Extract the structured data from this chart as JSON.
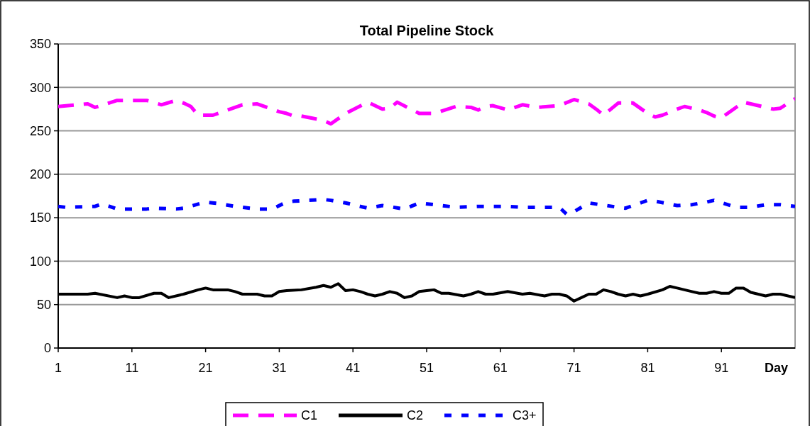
{
  "chart_data": {
    "type": "line",
    "title": "Total Pipeline Stock",
    "xlabel": "Day",
    "xlim": [
      1,
      101
    ],
    "xticks": [
      1,
      11,
      21,
      31,
      41,
      51,
      61,
      71,
      81,
      91
    ],
    "ylim": [
      0,
      350
    ],
    "yticks": [
      0,
      50,
      100,
      150,
      200,
      250,
      300,
      350
    ],
    "grid": "y",
    "legend": "bottom",
    "series": [
      {
        "name": "C1",
        "color": "#ff00ff",
        "line_style": "dashed",
        "x": [
          1,
          5,
          6,
          9,
          13,
          15,
          17,
          18,
          19,
          20,
          22,
          26,
          28,
          31,
          32,
          33,
          34,
          37,
          38,
          40,
          43,
          45,
          46,
          47,
          50,
          52,
          55,
          57,
          58,
          59,
          60,
          62,
          64,
          66,
          69,
          71,
          73,
          74,
          75,
          77,
          79,
          81,
          82,
          83,
          85,
          86,
          88,
          89,
          90,
          91,
          94,
          97,
          98,
          99,
          101
        ],
        "values": [
          278,
          281,
          277,
          285,
          285,
          280,
          285,
          282,
          278,
          268,
          268,
          280,
          281,
          272,
          270,
          267,
          267,
          262,
          258,
          270,
          283,
          275,
          276,
          283,
          270,
          270,
          278,
          277,
          274,
          278,
          279,
          274,
          280,
          277,
          279,
          286,
          281,
          275,
          268,
          282,
          282,
          270,
          266,
          268,
          275,
          278,
          274,
          271,
          267,
          265,
          283,
          277,
          275,
          276,
          287
        ]
      },
      {
        "name": "C2",
        "color": "#000000",
        "line_style": "solid",
        "x": [
          1,
          5,
          6,
          9,
          10,
          11,
          12,
          14,
          15,
          16,
          18,
          20,
          21,
          22,
          24,
          25,
          26,
          28,
          29,
          30,
          31,
          32,
          34,
          36,
          37,
          38,
          39,
          40,
          41,
          42,
          43,
          44,
          45,
          46,
          47,
          48,
          49,
          50,
          51,
          52,
          53,
          54,
          56,
          57,
          58,
          59,
          60,
          62,
          64,
          65,
          67,
          68,
          69,
          70,
          71,
          72,
          73,
          74,
          75,
          76,
          77,
          78,
          79,
          80,
          81,
          83,
          84,
          85,
          87,
          88,
          89,
          90,
          91,
          92,
          93,
          94,
          95,
          97,
          98,
          99,
          101
        ],
        "values": [
          62,
          62,
          63,
          58,
          60,
          58,
          58,
          63,
          63,
          58,
          62,
          67,
          69,
          67,
          67,
          65,
          62,
          62,
          60,
          60,
          65,
          66,
          67,
          70,
          72,
          70,
          74,
          66,
          67,
          65,
          62,
          60,
          62,
          65,
          63,
          58,
          60,
          65,
          66,
          67,
          63,
          63,
          60,
          62,
          65,
          62,
          62,
          65,
          62,
          63,
          60,
          62,
          62,
          60,
          54,
          58,
          62,
          62,
          67,
          65,
          62,
          60,
          62,
          60,
          62,
          67,
          71,
          69,
          65,
          63,
          63,
          65,
          63,
          63,
          69,
          69,
          64,
          60,
          62,
          62,
          58
        ]
      },
      {
        "name": "C3+",
        "color": "#0000ff",
        "line_style": "dotted",
        "x": [
          1,
          2,
          6,
          7,
          9,
          13,
          14,
          17,
          18,
          21,
          23,
          25,
          28,
          30,
          32,
          33,
          37,
          38,
          40,
          43,
          45,
          48,
          50,
          52,
          55,
          58,
          59,
          62,
          64,
          66,
          69,
          70,
          71,
          73,
          77,
          78,
          81,
          82,
          85,
          87,
          89,
          90,
          93,
          95,
          97,
          99,
          101
        ],
        "values": [
          163,
          162,
          163,
          166,
          160,
          160,
          161,
          160,
          161,
          168,
          166,
          163,
          160,
          160,
          168,
          169,
          171,
          170,
          167,
          161,
          164,
          160,
          167,
          165,
          162,
          163,
          163,
          163,
          162,
          162,
          162,
          154,
          157,
          167,
          162,
          161,
          170,
          169,
          164,
          165,
          168,
          170,
          162,
          162,
          165,
          165,
          163
        ]
      }
    ]
  }
}
